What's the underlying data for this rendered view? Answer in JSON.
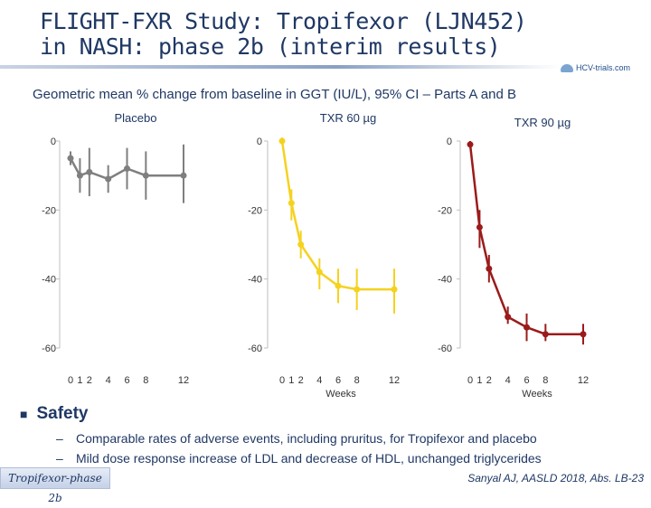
{
  "title": {
    "line1": "FLIGHT-FXR Study: Tropifexor (LJN452)",
    "line2": "in NASH: phase 2b (interim results)"
  },
  "logo": {
    "text": "HCV-trials.com"
  },
  "subtitle": "Geometric mean % change from baseline in GGT (IU/L), 95% CI – Parts A and B",
  "colors": {
    "placebo": "#7f7f7f",
    "txr60": "#f5d21f",
    "txr90": "#9b1b1b",
    "text": "#1f3864"
  },
  "chart_data": [
    {
      "type": "line",
      "title": "Placebo",
      "xlabel": "",
      "ylabel": "",
      "x": [
        0,
        1,
        2,
        4,
        6,
        8,
        12
      ],
      "x_ticks": [
        "0",
        "1",
        "2",
        "4",
        "6",
        "8",
        "12"
      ],
      "y_ticks": [
        "0",
        "-20",
        "-40",
        "-60"
      ],
      "ylim": [
        -62,
        0
      ],
      "series": [
        {
          "name": "Placebo",
          "values": [
            -5,
            -10,
            -9,
            -11,
            -8,
            -10,
            -10
          ],
          "ci_lower": [
            -7,
            -15,
            -16,
            -15,
            -14,
            -17,
            -18
          ],
          "ci_upper": [
            -3,
            -5,
            -2,
            -7,
            -2,
            -3,
            -1
          ]
        }
      ]
    },
    {
      "type": "line",
      "title": "TXR 60 µg",
      "xlabel": "Weeks",
      "ylabel": "",
      "x": [
        0,
        1,
        2,
        4,
        6,
        8,
        12
      ],
      "x_ticks": [
        "0",
        "1",
        "2",
        "4",
        "6",
        "8",
        "12"
      ],
      "y_ticks": [
        "0",
        "-20",
        "-40",
        "-60"
      ],
      "ylim": [
        -62,
        0
      ],
      "series": [
        {
          "name": "TXR 60 µg",
          "values": [
            0,
            -18,
            -30,
            -38,
            -42,
            -43,
            -43
          ],
          "ci_lower": [
            -1,
            -23,
            -34,
            -43,
            -47,
            -49,
            -50
          ],
          "ci_upper": [
            1,
            -14,
            -26,
            -34,
            -37,
            -37,
            -37
          ]
        }
      ]
    },
    {
      "type": "line",
      "title": "TXR 90 µg",
      "xlabel": "Weeks",
      "ylabel": "",
      "x": [
        0,
        1,
        2,
        4,
        6,
        8,
        12
      ],
      "x_ticks": [
        "0",
        "1",
        "2",
        "4",
        "6",
        "8",
        "12"
      ],
      "y_ticks": [
        "0",
        "-20",
        "-40",
        "-60"
      ],
      "ylim": [
        -62,
        0
      ],
      "series": [
        {
          "name": "TXR 90 µg",
          "values": [
            -1,
            -25,
            -37,
            -51,
            -54,
            -56,
            -56
          ],
          "ci_lower": [
            -2,
            -31,
            -41,
            -53,
            -58,
            -58,
            -59
          ],
          "ci_upper": [
            0,
            -20,
            -33,
            -48,
            -50,
            -53,
            -53
          ]
        }
      ]
    }
  ],
  "safety": {
    "heading": "Safety",
    "items": [
      "Comparable rates of adverse events, including pruritus, for Tropifexor and placebo",
      "Mild dose response increase of LDL and decrease of HDL, unchanged triglycerides"
    ]
  },
  "footer": {
    "tag": "Tropifexor-phase 2b",
    "citation": "Sanyal AJ, AASLD 2018, Abs. LB-23"
  }
}
